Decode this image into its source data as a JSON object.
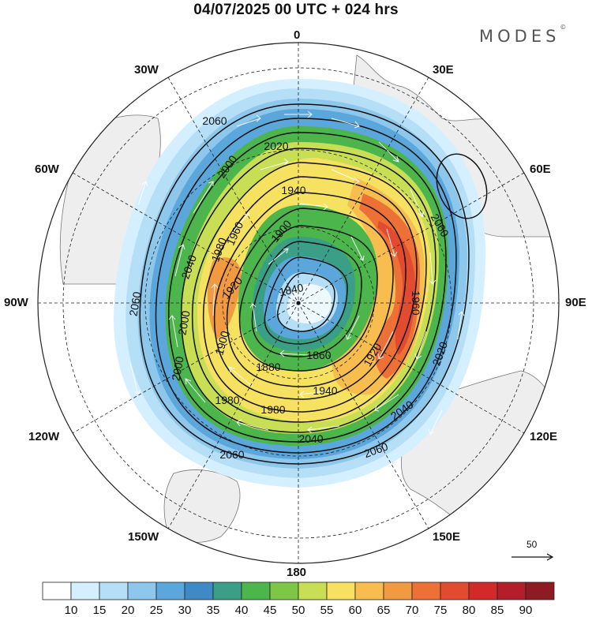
{
  "header": {
    "title": "04/07/2025  00 UTC  + 024 hrs",
    "brand": "MODES",
    "brand_mark": "©"
  },
  "map": {
    "projection": "north polar stereographic",
    "center": "90N",
    "longitude_labels": [
      {
        "id": "0",
        "text": "0"
      },
      {
        "id": "30e",
        "text": "30E"
      },
      {
        "id": "60e",
        "text": "60E"
      },
      {
        "id": "90e",
        "text": "90E"
      },
      {
        "id": "120e",
        "text": "120E"
      },
      {
        "id": "150e",
        "text": "150E"
      },
      {
        "id": "180",
        "text": "180"
      },
      {
        "id": "150w",
        "text": "150W"
      },
      {
        "id": "120w",
        "text": "120W"
      },
      {
        "id": "90w",
        "text": "90W"
      },
      {
        "id": "60w",
        "text": "60W"
      },
      {
        "id": "30w",
        "text": "30W"
      }
    ],
    "contour_labels": [
      "2060",
      "2020",
      "1940",
      "1900",
      "1840",
      "1860",
      "1880",
      "1920",
      "1940",
      "1980",
      "1980",
      "2000",
      "2040",
      "2060",
      "2060",
      "2040",
      "2020",
      "1960",
      "2060",
      "1920",
      "1980",
      "2000",
      "2040",
      "1960",
      "2000",
      "2060",
      "1900"
    ],
    "shading_colors": [
      "#ffffff",
      "#d4efff",
      "#b5def7",
      "#8ec7ec",
      "#5ba6db",
      "#3f8ac4",
      "#3a9f86",
      "#4cb54c",
      "#7ec746",
      "#c7de55",
      "#f6e260",
      "#f8bd4f",
      "#f19a42",
      "#ed7036",
      "#e24b30",
      "#d22a2a",
      "#b21e2a",
      "#8e1a22"
    ],
    "reference_vector": {
      "label": "50"
    }
  },
  "colorbar": {
    "labels": [
      "10",
      "15",
      "20",
      "25",
      "30",
      "35",
      "40",
      "45",
      "50",
      "55",
      "60",
      "65",
      "70",
      "75",
      "80",
      "85",
      "90"
    ],
    "colors": [
      "#ffffff",
      "#d4efff",
      "#b5def7",
      "#8ec7ec",
      "#5ba6db",
      "#3f8ac4",
      "#3a9f86",
      "#4cb54c",
      "#7ec746",
      "#c7de55",
      "#f6e260",
      "#f8bd4f",
      "#f19a42",
      "#ed7036",
      "#e24b30",
      "#d22a2a",
      "#b21e2a",
      "#8e1a22"
    ]
  }
}
